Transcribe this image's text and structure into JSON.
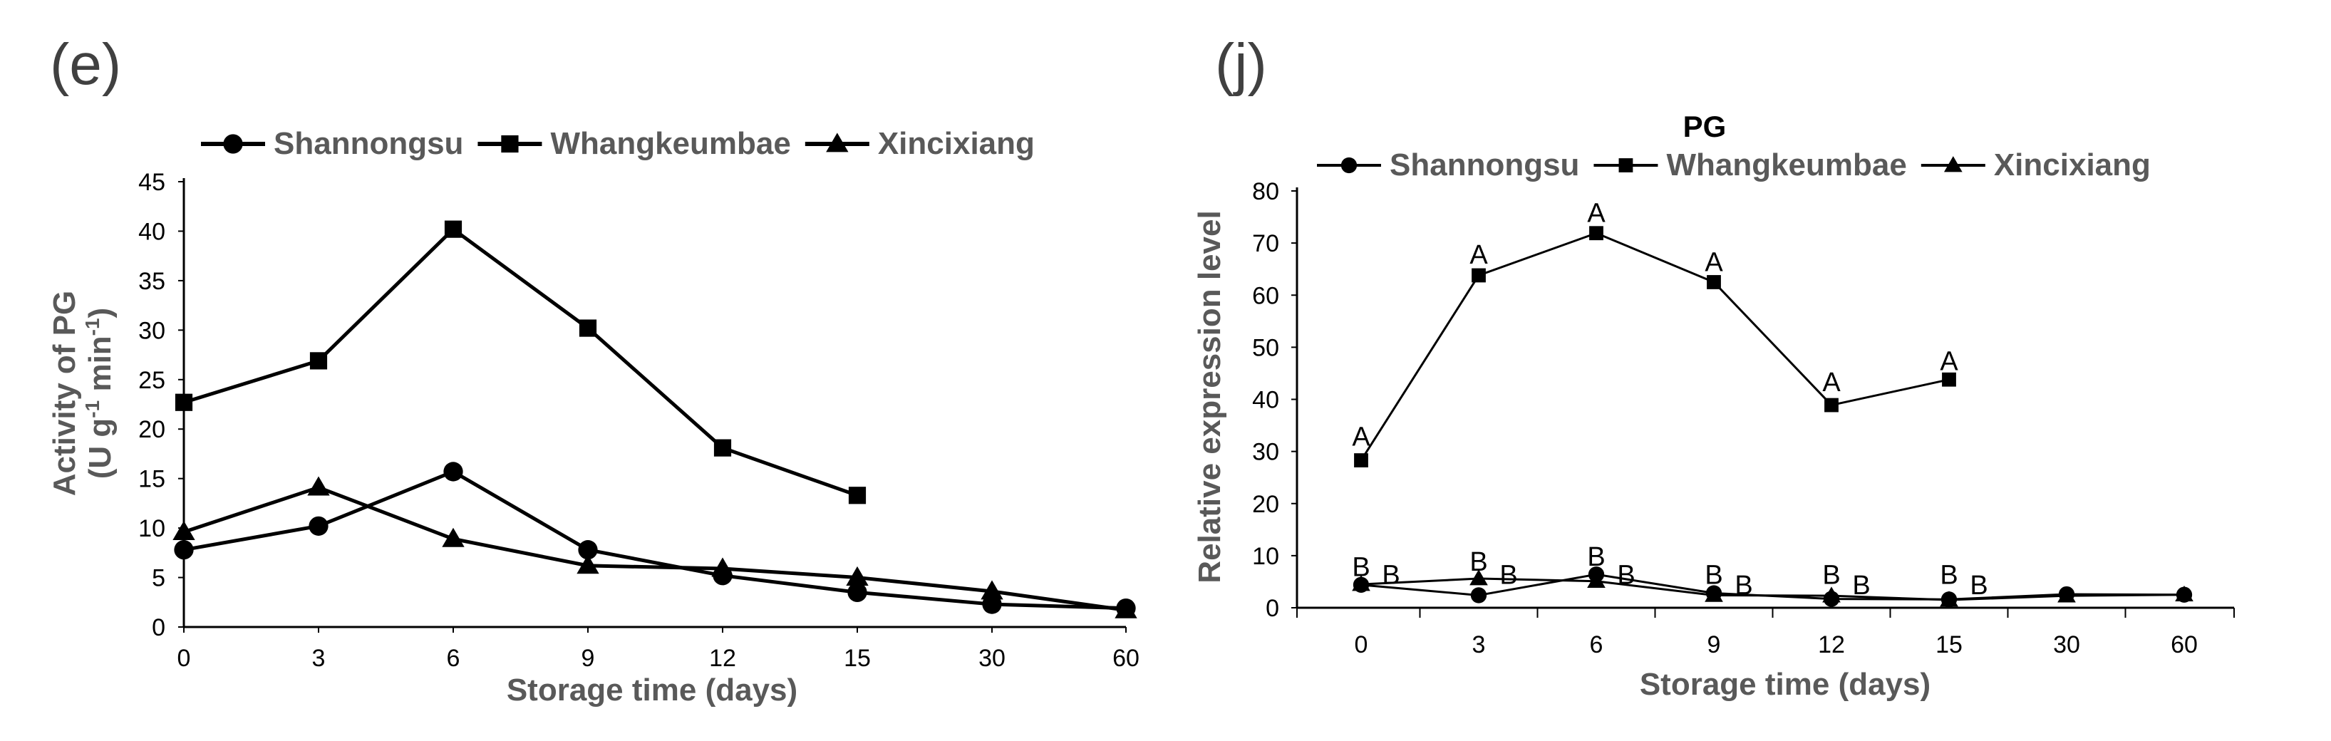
{
  "chart_data": [
    {
      "type": "line",
      "panel_label": "(e)",
      "title": "",
      "categories": [
        "0",
        "3",
        "6",
        "9",
        "12",
        "15",
        "30",
        "60"
      ],
      "xlabel": "Storage time (days)",
      "ylabel_line1": "Activity of PG",
      "ylabel_line2_parts": [
        "(U g",
        "-1",
        " min",
        "-1",
        ")"
      ],
      "ylim": [
        0,
        45
      ],
      "yticks": [
        0,
        5,
        10,
        15,
        20,
        25,
        30,
        35,
        40,
        45
      ],
      "legend": [
        "Shannongsu",
        "Whangkeumbae",
        "Xincixiang"
      ],
      "series": [
        {
          "name": "Shannongsu",
          "marker": "circle",
          "values": [
            7.8,
            10.2,
            15.7,
            7.8,
            5.2,
            3.5,
            2.3,
            1.9
          ]
        },
        {
          "name": "Whangkeumbae",
          "marker": "square",
          "values": [
            22.7,
            26.9,
            40.2,
            30.2,
            18.1,
            13.3,
            null,
            null
          ]
        },
        {
          "name": "Xincixiang",
          "marker": "triangle",
          "values": [
            9.6,
            14.1,
            8.9,
            6.2,
            5.9,
            5.0,
            3.6,
            1.7
          ]
        }
      ]
    },
    {
      "type": "line",
      "panel_label": "(j)",
      "title": "PG",
      "categories": [
        "0",
        "3",
        "6",
        "9",
        "12",
        "15",
        "30",
        "60"
      ],
      "xlabel": "Storage time (days)",
      "ylabel": "Relative expression level",
      "ylim": [
        0,
        80
      ],
      "yticks": [
        0,
        10,
        20,
        30,
        40,
        50,
        60,
        70,
        80
      ],
      "legend": [
        "Shannongsu",
        "Whangkeumbae",
        "Xincixiang"
      ],
      "series": [
        {
          "name": "Shannongsu",
          "marker": "circle",
          "values": [
            4.4,
            2.4,
            6.4,
            2.8,
            1.7,
            1.6,
            2.6,
            2.5
          ]
        },
        {
          "name": "Whangkeumbae",
          "marker": "square",
          "values": [
            28.3,
            63.8,
            71.9,
            62.5,
            38.9,
            43.8,
            null,
            null
          ]
        },
        {
          "name": "Xincixiang",
          "marker": "triangle",
          "values": [
            4.5,
            5.6,
            5.1,
            2.4,
            2.3,
            1.5,
            2.3,
            2.5
          ]
        }
      ],
      "annotations": [
        {
          "x": "0",
          "y": 33,
          "text": "A"
        },
        {
          "x": "3",
          "y": 68,
          "text": "A"
        },
        {
          "x": "6",
          "y": 76,
          "text": "A"
        },
        {
          "x": "9",
          "y": 66.5,
          "text": "A"
        },
        {
          "x": "12",
          "y": 43.5,
          "text": "A"
        },
        {
          "x": "15",
          "y": 47.5,
          "text": "A"
        },
        {
          "x": "0",
          "y": 8,
          "text": "B"
        },
        {
          "x": "3",
          "y": 9,
          "text": "B"
        },
        {
          "x": "6",
          "y": 10,
          "text": "B"
        },
        {
          "x": "9",
          "y": 6.5,
          "text": "B"
        },
        {
          "x": "12",
          "y": 6.5,
          "text": "B"
        },
        {
          "x": "15",
          "y": 6.5,
          "text": "B"
        },
        {
          "x": "0",
          "y": 6.5,
          "text": "B",
          "offset": "right"
        },
        {
          "x": "3",
          "y": 6.5,
          "text": "B",
          "offset": "right"
        },
        {
          "x": "6",
          "y": 6.5,
          "text": "B",
          "offset": "right"
        },
        {
          "x": "9",
          "y": 4.5,
          "text": "B",
          "offset": "right"
        },
        {
          "x": "12",
          "y": 4.5,
          "text": "B",
          "offset": "right"
        },
        {
          "x": "15",
          "y": 4.5,
          "text": "B",
          "offset": "right"
        }
      ]
    }
  ]
}
